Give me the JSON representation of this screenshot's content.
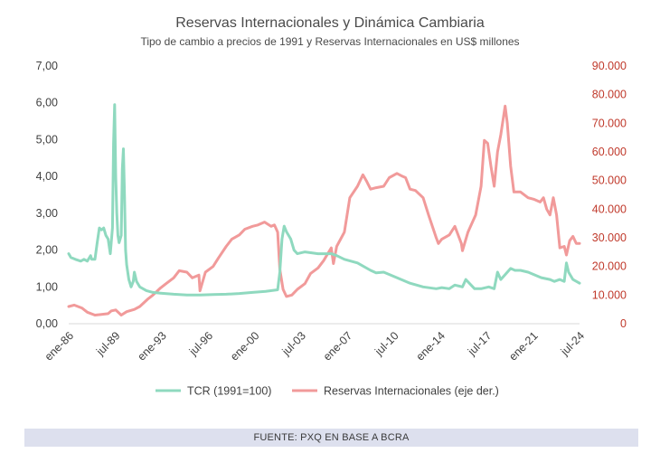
{
  "chart_data": {
    "type": "line",
    "title": "Reservas Internacionales y Dinámica Cambiaria",
    "subtitle": "Tipo de cambio a precios de 1991 y Reservas Internacionales en US$ millones",
    "x_tick_labels": [
      "ene-86",
      "jul-89",
      "ene-93",
      "jul-96",
      "ene-00",
      "jul-03",
      "ene-07",
      "jul-10",
      "ene-14",
      "jul-17",
      "ene-21",
      "jul-24"
    ],
    "x_range": [
      "1986-01",
      "2024-12"
    ],
    "y_left": {
      "range": [
        0,
        7
      ],
      "ticks": [
        "0,00",
        "1,00",
        "2,00",
        "3,00",
        "4,00",
        "5,00",
        "6,00",
        "7,00"
      ]
    },
    "y_right": {
      "range": [
        0,
        90000
      ],
      "ticks": [
        "0",
        "10.000",
        "20.000",
        "30.000",
        "40.000",
        "50.000",
        "60.000",
        "70.000",
        "80.000",
        "90.000"
      ]
    },
    "grid": false,
    "legend_position": "bottom",
    "series": [
      {
        "name": "TCR (1991=100)",
        "axis": "left",
        "color": "#8fd9bf",
        "points": [
          [
            "1986-01",
            1.9
          ],
          [
            "1986-03",
            1.8
          ],
          [
            "1986-07",
            1.75
          ],
          [
            "1986-12",
            1.7
          ],
          [
            "1987-03",
            1.75
          ],
          [
            "1987-06",
            1.7
          ],
          [
            "1987-09",
            1.85
          ],
          [
            "1987-10",
            1.75
          ],
          [
            "1988-01",
            1.75
          ],
          [
            "1988-03",
            2.2
          ],
          [
            "1988-05",
            2.6
          ],
          [
            "1988-07",
            2.55
          ],
          [
            "1988-09",
            2.6
          ],
          [
            "1988-11",
            2.4
          ],
          [
            "1989-01",
            2.3
          ],
          [
            "1989-03",
            1.9
          ],
          [
            "1989-05",
            2.6
          ],
          [
            "1989-06",
            4.9
          ],
          [
            "1989-07",
            5.95
          ],
          [
            "1989-08",
            4.0
          ],
          [
            "1989-09",
            3.0
          ],
          [
            "1989-10",
            2.4
          ],
          [
            "1989-11",
            2.2
          ],
          [
            "1990-01",
            2.4
          ],
          [
            "1990-02",
            4.2
          ],
          [
            "1990-03",
            4.75
          ],
          [
            "1990-04",
            3.5
          ],
          [
            "1990-05",
            2.0
          ],
          [
            "1990-06",
            1.6
          ],
          [
            "1990-08",
            1.2
          ],
          [
            "1990-10",
            1.0
          ],
          [
            "1990-12",
            1.15
          ],
          [
            "1991-01",
            1.4
          ],
          [
            "1991-03",
            1.15
          ],
          [
            "1991-06",
            1.0
          ],
          [
            "1991-12",
            0.9
          ],
          [
            "1992-06",
            0.85
          ],
          [
            "1993-01",
            0.83
          ],
          [
            "1994-01",
            0.8
          ],
          [
            "1995-01",
            0.78
          ],
          [
            "1996-01",
            0.78
          ],
          [
            "1997-01",
            0.79
          ],
          [
            "1998-01",
            0.8
          ],
          [
            "1999-01",
            0.82
          ],
          [
            "2000-01",
            0.85
          ],
          [
            "2001-01",
            0.88
          ],
          [
            "2001-12",
            0.92
          ],
          [
            "2002-02",
            1.4
          ],
          [
            "2002-04",
            2.3
          ],
          [
            "2002-06",
            2.65
          ],
          [
            "2002-08",
            2.5
          ],
          [
            "2002-12",
            2.3
          ],
          [
            "2003-03",
            2.0
          ],
          [
            "2003-06",
            1.9
          ],
          [
            "2004-01",
            1.95
          ],
          [
            "2005-01",
            1.9
          ],
          [
            "2006-01",
            1.9
          ],
          [
            "2006-06",
            1.85
          ],
          [
            "2007-01",
            1.75
          ],
          [
            "2008-01",
            1.65
          ],
          [
            "2009-01",
            1.45
          ],
          [
            "2009-06",
            1.38
          ],
          [
            "2010-01",
            1.4
          ],
          [
            "2011-01",
            1.25
          ],
          [
            "2012-01",
            1.1
          ],
          [
            "2013-01",
            1.0
          ],
          [
            "2014-01",
            0.95
          ],
          [
            "2014-06",
            0.98
          ],
          [
            "2015-01",
            0.95
          ],
          [
            "2015-06",
            1.05
          ],
          [
            "2016-01",
            1.0
          ],
          [
            "2016-04",
            1.2
          ],
          [
            "2016-12",
            0.95
          ],
          [
            "2017-06",
            0.95
          ],
          [
            "2018-01",
            1.0
          ],
          [
            "2018-06",
            0.95
          ],
          [
            "2018-09",
            1.4
          ],
          [
            "2018-12",
            1.2
          ],
          [
            "2019-03",
            1.3
          ],
          [
            "2019-09",
            1.5
          ],
          [
            "2020-01",
            1.45
          ],
          [
            "2020-06",
            1.45
          ],
          [
            "2021-01",
            1.4
          ],
          [
            "2022-01",
            1.25
          ],
          [
            "2022-09",
            1.2
          ],
          [
            "2023-01",
            1.15
          ],
          [
            "2023-06",
            1.2
          ],
          [
            "2023-10",
            1.15
          ],
          [
            "2023-12",
            1.65
          ],
          [
            "2024-02",
            1.4
          ],
          [
            "2024-06",
            1.2
          ],
          [
            "2024-12",
            1.1
          ]
        ]
      },
      {
        "name": "Reservas Internacionales (eje der.)",
        "axis": "right",
        "color": "#f19a9a",
        "points": [
          [
            "1986-01",
            6000
          ],
          [
            "1986-06",
            6500
          ],
          [
            "1987-01",
            5500
          ],
          [
            "1987-06",
            4000
          ],
          [
            "1988-01",
            3000
          ],
          [
            "1988-06",
            3200
          ],
          [
            "1989-01",
            3500
          ],
          [
            "1989-04",
            4500
          ],
          [
            "1989-08",
            4800
          ],
          [
            "1990-01",
            3000
          ],
          [
            "1990-06",
            4200
          ],
          [
            "1991-01",
            5000
          ],
          [
            "1991-06",
            6000
          ],
          [
            "1992-01",
            8500
          ],
          [
            "1992-06",
            10000
          ],
          [
            "1993-01",
            12500
          ],
          [
            "1993-06",
            14000
          ],
          [
            "1994-01",
            16000
          ],
          [
            "1994-06",
            18500
          ],
          [
            "1995-01",
            18000
          ],
          [
            "1995-06",
            16000
          ],
          [
            "1995-12",
            17000
          ],
          [
            "1996-01",
            11500
          ],
          [
            "1996-06",
            18000
          ],
          [
            "1997-01",
            20000
          ],
          [
            "1997-06",
            23000
          ],
          [
            "1998-01",
            27000
          ],
          [
            "1998-06",
            29500
          ],
          [
            "1999-01",
            31000
          ],
          [
            "1999-06",
            33000
          ],
          [
            "2000-01",
            34000
          ],
          [
            "2000-06",
            34500
          ],
          [
            "2000-12",
            35500
          ],
          [
            "2001-06",
            34000
          ],
          [
            "2001-09",
            34500
          ],
          [
            "2001-12",
            32000
          ],
          [
            "2002-02",
            19000
          ],
          [
            "2002-05",
            12000
          ],
          [
            "2002-08",
            9500
          ],
          [
            "2003-01",
            10000
          ],
          [
            "2003-06",
            12000
          ],
          [
            "2004-01",
            14000
          ],
          [
            "2004-06",
            17500
          ],
          [
            "2005-01",
            19500
          ],
          [
            "2005-06",
            22000
          ],
          [
            "2006-01",
            26500
          ],
          [
            "2006-03",
            21000
          ],
          [
            "2006-06",
            27000
          ],
          [
            "2007-01",
            32000
          ],
          [
            "2007-06",
            44000
          ],
          [
            "2008-01",
            48000
          ],
          [
            "2008-06",
            52000
          ],
          [
            "2008-09",
            50000
          ],
          [
            "2009-01",
            47000
          ],
          [
            "2009-06",
            47500
          ],
          [
            "2010-01",
            48000
          ],
          [
            "2010-06",
            51000
          ],
          [
            "2011-01",
            52500
          ],
          [
            "2011-06",
            51500
          ],
          [
            "2011-09",
            51000
          ],
          [
            "2012-01",
            47000
          ],
          [
            "2012-06",
            46500
          ],
          [
            "2013-01",
            44000
          ],
          [
            "2013-06",
            38000
          ],
          [
            "2014-01",
            30000
          ],
          [
            "2014-03",
            28000
          ],
          [
            "2014-06",
            29500
          ],
          [
            "2015-01",
            31000
          ],
          [
            "2015-06",
            34000
          ],
          [
            "2015-12",
            28000
          ],
          [
            "2016-01",
            25500
          ],
          [
            "2016-06",
            32000
          ],
          [
            "2017-01",
            38000
          ],
          [
            "2017-06",
            48000
          ],
          [
            "2017-09",
            64000
          ],
          [
            "2017-12",
            63000
          ],
          [
            "2018-03",
            55000
          ],
          [
            "2018-06",
            48000
          ],
          [
            "2018-09",
            60000
          ],
          [
            "2018-12",
            66000
          ],
          [
            "2019-02",
            71000
          ],
          [
            "2019-04",
            76000
          ],
          [
            "2019-06",
            70000
          ],
          [
            "2019-09",
            55000
          ],
          [
            "2019-12",
            46000
          ],
          [
            "2020-06",
            46000
          ],
          [
            "2021-01",
            44000
          ],
          [
            "2021-06",
            43500
          ],
          [
            "2021-12",
            42500
          ],
          [
            "2022-03",
            44000
          ],
          [
            "2022-06",
            40000
          ],
          [
            "2022-09",
            38000
          ],
          [
            "2022-12",
            44000
          ],
          [
            "2023-03",
            38000
          ],
          [
            "2023-06",
            26500
          ],
          [
            "2023-10",
            27000
          ],
          [
            "2023-12",
            24000
          ],
          [
            "2024-03",
            29000
          ],
          [
            "2024-06",
            30500
          ],
          [
            "2024-09",
            28000
          ],
          [
            "2024-12",
            28000
          ]
        ]
      }
    ]
  },
  "footer": {
    "source": "FUENTE: PXQ EN BASE A BCRA"
  }
}
